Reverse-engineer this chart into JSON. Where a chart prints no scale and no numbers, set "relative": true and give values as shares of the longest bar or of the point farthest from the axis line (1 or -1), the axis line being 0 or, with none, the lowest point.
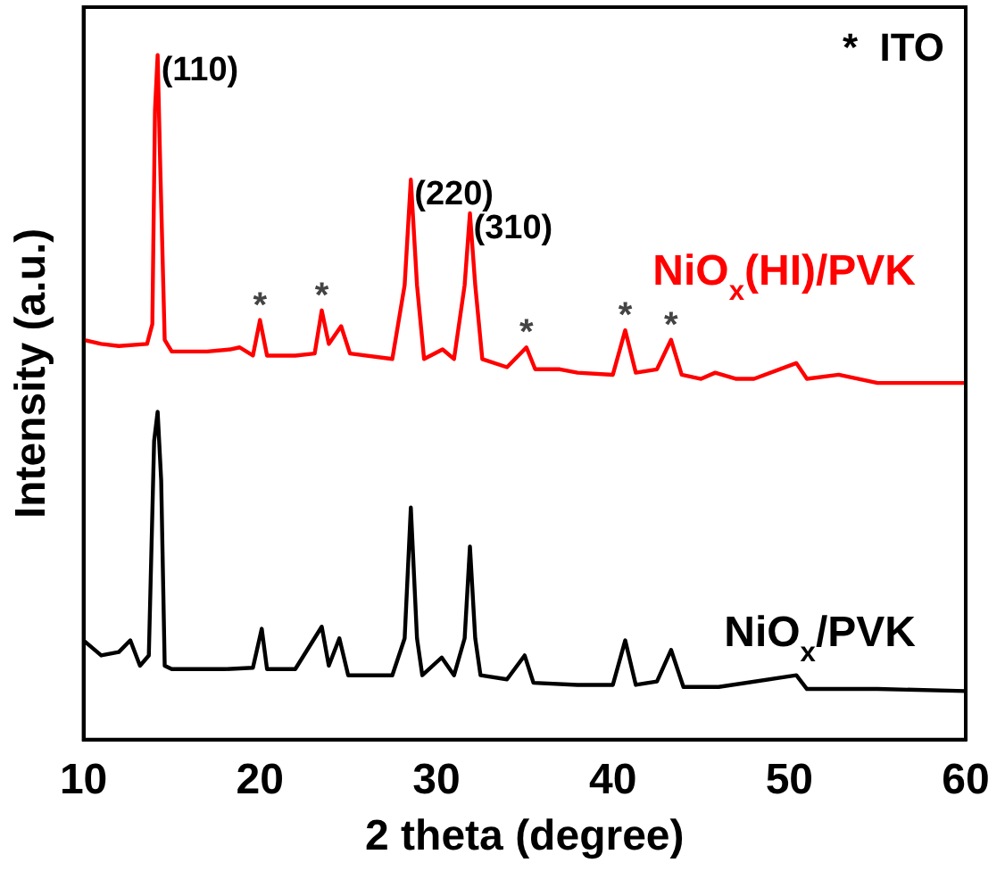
{
  "chart_data": {
    "type": "line",
    "relative": true,
    "xlabel": "2 theta (degree)",
    "ylabel": "Intensity (a.u.)",
    "xlim": [
      10,
      60
    ],
    "xticks": [
      10,
      20,
      30,
      40,
      50,
      60
    ],
    "grid": false,
    "legend": false,
    "marker": "none",
    "line_style": "solid",
    "annotations": [
      "*  ITO",
      {
        "text": "(110)",
        "x": 14.2,
        "y": 1
      },
      {
        "text": "(220)",
        "x": 28.55,
        "y": 0.818
      },
      {
        "text": "(310)",
        "x": 31.9,
        "y": 0.769
      },
      {
        "text": "*",
        "x": 20.0,
        "y": 0.613
      },
      {
        "text": "*",
        "x": 23.5,
        "y": 0.627
      },
      {
        "text": "*",
        "x": 35.1,
        "y": 0.573
      },
      {
        "text": "*",
        "x": 40.7,
        "y": 0.598
      },
      {
        "text": "*",
        "x": 43.3,
        "y": 0.584
      }
    ],
    "series": [
      {
        "name": "NiO$_{x}$(HI)/PVK",
        "color": "#ff0000",
        "x": [
          10,
          11,
          12,
          13.6,
          13.9,
          14.05,
          14.2,
          14.35,
          14.6,
          15,
          17,
          18.3,
          18.85,
          19.6,
          20.0,
          20.4,
          22,
          23.1,
          23.5,
          23.9,
          24.6,
          25.1,
          27.5,
          28.2,
          28.55,
          28.9,
          29.3,
          30.35,
          31,
          31.6,
          31.9,
          32.2,
          32.6,
          34,
          35.1,
          35.6,
          37,
          38,
          40,
          40.7,
          41.3,
          42.5,
          43.3,
          43.9,
          45,
          45.8,
          47,
          48,
          50.4,
          51,
          52.8,
          55,
          58,
          60
        ],
        "values": [
          0.584,
          0.578,
          0.575,
          0.578,
          0.607,
          0.92,
          1,
          0.835,
          0.584,
          0.567,
          0.567,
          0.57,
          0.573,
          0.561,
          0.613,
          0.561,
          0.561,
          0.564,
          0.627,
          0.578,
          0.604,
          0.564,
          0.556,
          0.664,
          0.818,
          0.664,
          0.556,
          0.57,
          0.556,
          0.664,
          0.769,
          0.664,
          0.556,
          0.544,
          0.573,
          0.541,
          0.541,
          0.536,
          0.533,
          0.598,
          0.536,
          0.541,
          0.584,
          0.533,
          0.527,
          0.536,
          0.527,
          0.527,
          0.55,
          0.527,
          0.533,
          0.521,
          0.521,
          0.521
        ]
      },
      {
        "name": "NiO$_{x}$/PVK",
        "color": "#000000",
        "x": [
          10,
          11,
          12,
          12.65,
          13.2,
          13.7,
          14.0,
          14.2,
          14.4,
          14.6,
          15,
          18,
          19.6,
          20.1,
          20.4,
          22,
          23.5,
          23.9,
          24.5,
          25,
          27.5,
          28.2,
          28.55,
          28.9,
          29.2,
          30.3,
          31,
          31.6,
          31.9,
          32.2,
          32.5,
          34,
          35.0,
          35.5,
          38,
          40,
          40.7,
          41.3,
          42.5,
          43.3,
          44,
          46,
          50.4,
          51,
          55,
          60
        ],
        "values": [
          0.145,
          0.123,
          0.128,
          0.145,
          0.108,
          0.123,
          0.436,
          0.479,
          0.379,
          0.108,
          0.103,
          0.103,
          0.105,
          0.162,
          0.103,
          0.103,
          0.165,
          0.108,
          0.148,
          0.094,
          0.094,
          0.148,
          0.339,
          0.148,
          0.094,
          0.12,
          0.094,
          0.148,
          0.282,
          0.148,
          0.094,
          0.088,
          0.123,
          0.083,
          0.08,
          0.08,
          0.145,
          0.08,
          0.085,
          0.131,
          0.077,
          0.077,
          0.094,
          0.074,
          0.074,
          0.071
        ]
      }
    ]
  }
}
